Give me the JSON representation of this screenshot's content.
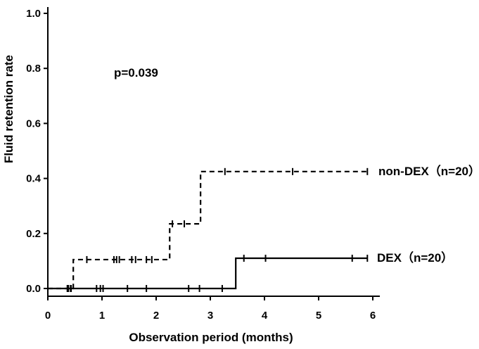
{
  "chart_data": {
    "type": "line",
    "title": "",
    "xlabel": "Observation period (months)",
    "ylabel": "Fluid retention rate",
    "xlim": [
      0,
      6
    ],
    "ylim": [
      0,
      1.0
    ],
    "x_ticks": [
      "0",
      "1",
      "2",
      "3",
      "4",
      "5",
      "6"
    ],
    "y_ticks": [
      "0.0",
      "0.2",
      "0.4",
      "0.6",
      "0.8",
      "1.0"
    ],
    "grid": false,
    "annotation": "p=0.039",
    "series": [
      {
        "name": "non-DEX（n=20）",
        "style": "dashed",
        "color": "#000000",
        "steps": [
          [
            0,
            0
          ],
          [
            0.47,
            0.105
          ],
          [
            2.25,
            0.235
          ],
          [
            2.82,
            0.425
          ],
          [
            5.9,
            0.425
          ]
        ],
        "censored": [
          0.36,
          0.42,
          0.72,
          1.22,
          1.27,
          1.32,
          1.55,
          1.62,
          1.82,
          1.92,
          2.3,
          2.52,
          3.27,
          4.52,
          5.9
        ]
      },
      {
        "name": "DEX（n=20）",
        "style": "solid",
        "color": "#000000",
        "steps": [
          [
            0,
            0
          ],
          [
            3.47,
            0.11
          ],
          [
            5.9,
            0.11
          ]
        ],
        "censored": [
          0.38,
          0.43,
          0.9,
          0.97,
          1.02,
          1.47,
          1.82,
          2.6,
          2.8,
          3.22,
          3.62,
          4.02,
          5.62,
          5.9
        ]
      }
    ]
  }
}
